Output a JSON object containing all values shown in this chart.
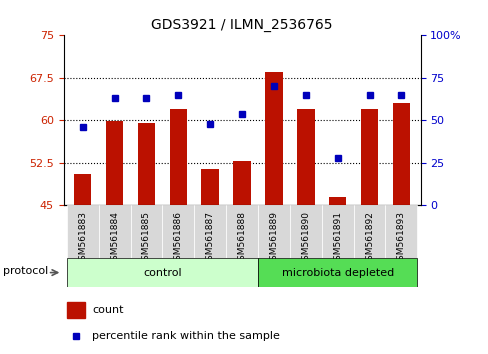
{
  "title": "GDS3921 / ILMN_2536765",
  "samples": [
    "GSM561883",
    "GSM561884",
    "GSM561885",
    "GSM561886",
    "GSM561887",
    "GSM561888",
    "GSM561889",
    "GSM561890",
    "GSM561891",
    "GSM561892",
    "GSM561893"
  ],
  "counts": [
    50.5,
    59.8,
    59.5,
    62.0,
    51.5,
    52.8,
    68.5,
    62.0,
    46.5,
    62.0,
    63.0
  ],
  "percentiles": [
    46,
    63,
    63,
    65,
    48,
    54,
    70,
    65,
    28,
    65,
    65
  ],
  "n_control": 6,
  "ylim_left": [
    45,
    75
  ],
  "ylim_right": [
    0,
    100
  ],
  "yticks_left": [
    45,
    52.5,
    60,
    67.5,
    75
  ],
  "yticks_right": [
    0,
    25,
    50,
    75,
    100
  ],
  "bar_color": "#bb1100",
  "dot_color": "#0000bb",
  "control_color": "#ccffcc",
  "microbiota_color": "#55dd55",
  "legend_count_label": "count",
  "legend_pct_label": "percentile rank within the sample",
  "protocol_label": "protocol",
  "control_label": "control",
  "microbiota_label": "microbiota depleted"
}
